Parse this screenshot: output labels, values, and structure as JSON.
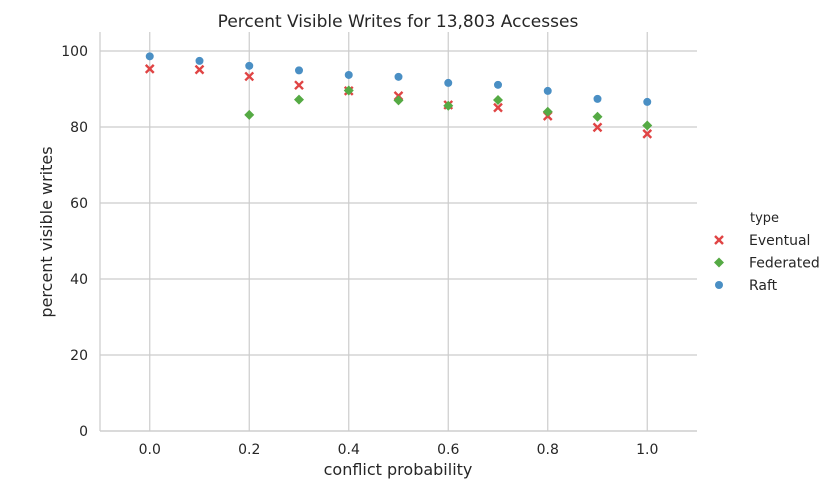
{
  "chart_data": {
    "type": "scatter",
    "title": "Percent Visible Writes for 13,803 Accesses",
    "xlabel": "conflict probability",
    "ylabel": "percent visible writes",
    "xlim": [
      -0.1,
      1.1
    ],
    "ylim": [
      0,
      105
    ],
    "x_ticks": [
      "0.0",
      "0.2",
      "0.4",
      "0.6",
      "0.8",
      "1.0"
    ],
    "y_ticks": [
      "0",
      "20",
      "40",
      "60",
      "80",
      "100"
    ],
    "grid": true,
    "legend": {
      "title": "type",
      "placement": "right"
    },
    "series": [
      {
        "name": "Eventual",
        "marker": "x",
        "color": "#e04444",
        "x": [
          0.0,
          0.1,
          0.2,
          0.3,
          0.4,
          0.5,
          0.6,
          0.7,
          0.8,
          0.9,
          1.0
        ],
        "y": [
          95.3,
          95.1,
          93.3,
          91.0,
          89.5,
          88.2,
          85.8,
          85.1,
          82.9,
          79.9,
          78.2
        ]
      },
      {
        "name": "Federated",
        "marker": "diamond",
        "color": "#55aa44",
        "x": [
          0.2,
          0.3,
          0.4,
          0.5,
          0.6,
          0.7,
          0.8,
          0.9,
          1.0
        ],
        "y": [
          83.2,
          87.2,
          89.6,
          87.0,
          85.6,
          87.1,
          84.0,
          82.7,
          80.4
        ]
      },
      {
        "name": "Raft",
        "marker": "circle",
        "color": "#4a8fc4",
        "x": [
          0.0,
          0.1,
          0.2,
          0.3,
          0.4,
          0.5,
          0.6,
          0.7,
          0.8,
          0.9,
          1.0
        ],
        "y": [
          98.6,
          97.4,
          96.1,
          94.9,
          93.7,
          93.2,
          91.6,
          91.1,
          89.5,
          87.4,
          86.6
        ]
      }
    ]
  }
}
